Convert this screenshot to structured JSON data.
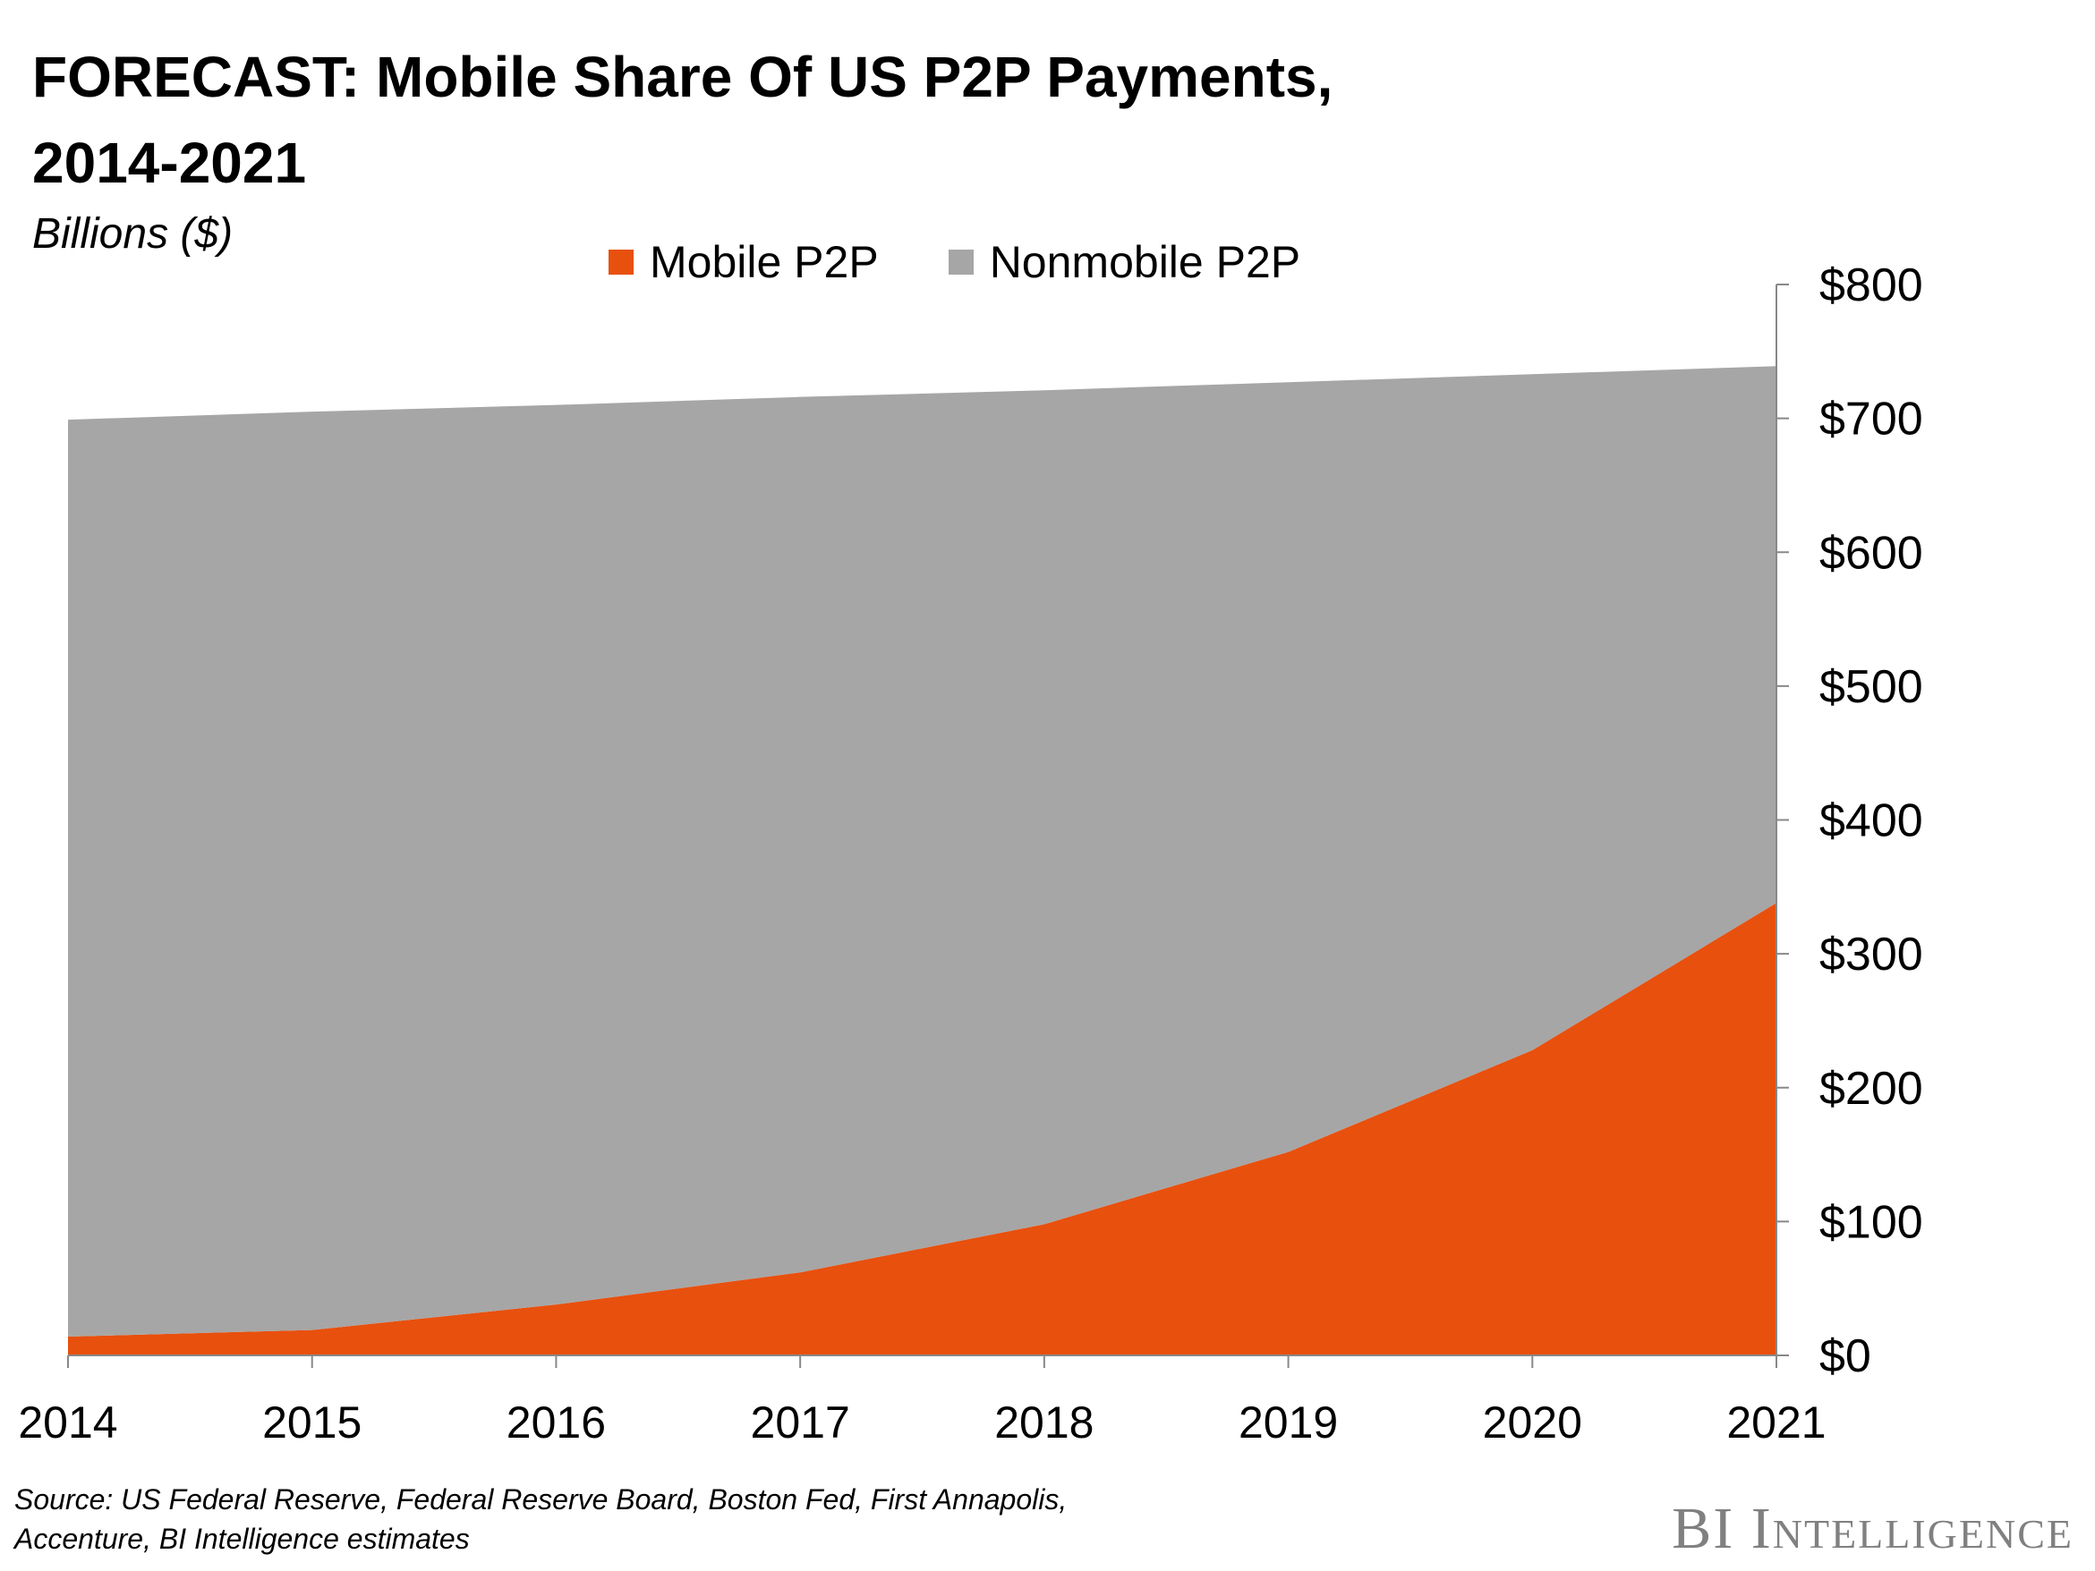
{
  "chart_data": {
    "type": "area",
    "stacked": true,
    "title": "FORECAST: Mobile Share Of US P2P Payments, 2014-2021",
    "subtitle": "Billions ($)",
    "x": [
      "2014",
      "2015",
      "2016",
      "2017",
      "2018",
      "2019",
      "2020",
      "2021"
    ],
    "series": [
      {
        "name": "Mobile P2P",
        "color": "#E8500E",
        "values": [
          14,
          19,
          38,
          62,
          98,
          152,
          228,
          338
        ]
      },
      {
        "name": "Nonmobile P2P",
        "color": "#A6A6A6",
        "values": [
          685,
          686,
          672,
          654,
          623,
          575,
          505,
          401
        ]
      }
    ],
    "totals": [
      699,
      705,
      710,
      716,
      721,
      727,
      733,
      739
    ],
    "ylim": [
      0,
      800
    ],
    "yticks": [
      "$0",
      "$100",
      "$200",
      "$300",
      "$400",
      "$500",
      "$600",
      "$700",
      "$800"
    ],
    "y_axis_side": "right",
    "legend_position": "top-center",
    "grid": false,
    "legend": [
      {
        "label": "Mobile P2P",
        "color": "#E8500E"
      },
      {
        "label": "Nonmobile P2P",
        "color": "#A6A6A6"
      }
    ]
  },
  "title_line1": "FORECAST: Mobile Share Of US P2P Payments,",
  "title_line2": "2014-2021",
  "source_line1": "Source: US Federal Reserve, Federal Reserve Board, Boston Fed, First Annapolis,",
  "source_line2": "Accenture, BI Intelligence estimates",
  "brand": "BI Intelligence"
}
